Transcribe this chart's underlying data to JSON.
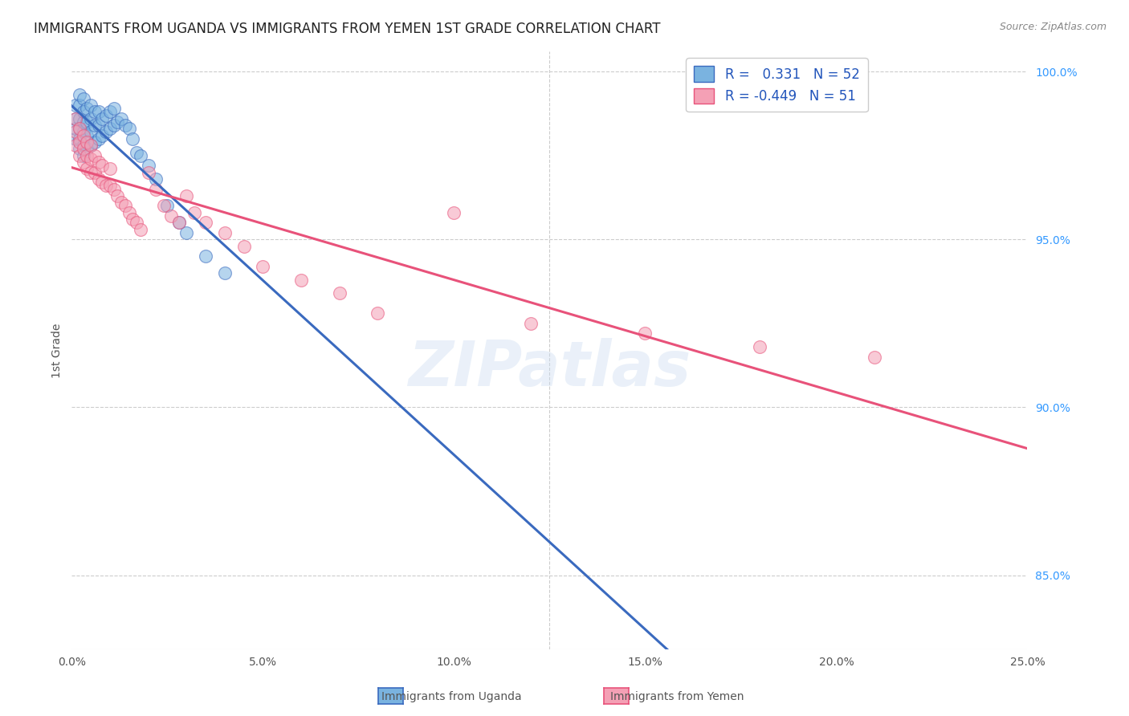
{
  "title": "IMMIGRANTS FROM UGANDA VS IMMIGRANTS FROM YEMEN 1ST GRADE CORRELATION CHART",
  "source": "Source: ZipAtlas.com",
  "ylabel": "1st Grade",
  "r_uganda": 0.331,
  "n_uganda": 52,
  "r_yemen": -0.449,
  "n_yemen": 51,
  "title_color": "#222222",
  "source_color": "#888888",
  "blue_scatter_color": "#7ab3e0",
  "pink_scatter_color": "#f4a0b5",
  "trendline_blue": "#3a6abf",
  "trendline_pink": "#e8527a",
  "legend_label_blue": "Immigrants from Uganda",
  "legend_label_pink": "Immigrants from Yemen",
  "watermark_text": "ZIPatlas",
  "xlim": [
    0.0,
    0.25
  ],
  "ylim": [
    0.828,
    1.006
  ],
  "xticks": [
    0.0,
    0.05,
    0.1,
    0.15,
    0.2,
    0.25
  ],
  "xticklabels": [
    "0.0%",
    "5.0%",
    "10.0%",
    "15.0%",
    "20.0%",
    "25.0%"
  ],
  "yticks_right": [
    1.0,
    0.95,
    0.9,
    0.85
  ],
  "yticklabels_right": [
    "100.0%",
    "95.0%",
    "90.0%",
    "85.0%"
  ],
  "gridline_color": "#cccccc",
  "uganda_x": [
    0.001,
    0.001,
    0.001,
    0.001,
    0.002,
    0.002,
    0.002,
    0.002,
    0.002,
    0.002,
    0.003,
    0.003,
    0.003,
    0.003,
    0.003,
    0.003,
    0.004,
    0.004,
    0.004,
    0.004,
    0.005,
    0.005,
    0.005,
    0.005,
    0.006,
    0.006,
    0.006,
    0.007,
    0.007,
    0.007,
    0.008,
    0.008,
    0.009,
    0.009,
    0.01,
    0.01,
    0.011,
    0.011,
    0.012,
    0.013,
    0.014,
    0.015,
    0.016,
    0.017,
    0.018,
    0.02,
    0.022,
    0.025,
    0.028,
    0.03,
    0.035,
    0.04
  ],
  "uganda_y": [
    0.98,
    0.983,
    0.986,
    0.99,
    0.977,
    0.98,
    0.983,
    0.986,
    0.99,
    0.993,
    0.975,
    0.978,
    0.982,
    0.985,
    0.988,
    0.992,
    0.977,
    0.981,
    0.985,
    0.989,
    0.978,
    0.982,
    0.986,
    0.99,
    0.979,
    0.984,
    0.988,
    0.98,
    0.984,
    0.988,
    0.981,
    0.986,
    0.982,
    0.987,
    0.983,
    0.988,
    0.984,
    0.989,
    0.985,
    0.986,
    0.984,
    0.983,
    0.98,
    0.976,
    0.975,
    0.972,
    0.968,
    0.96,
    0.955,
    0.952,
    0.945,
    0.94
  ],
  "yemen_x": [
    0.001,
    0.001,
    0.001,
    0.002,
    0.002,
    0.002,
    0.003,
    0.003,
    0.003,
    0.004,
    0.004,
    0.004,
    0.005,
    0.005,
    0.005,
    0.006,
    0.006,
    0.007,
    0.007,
    0.008,
    0.008,
    0.009,
    0.01,
    0.01,
    0.011,
    0.012,
    0.013,
    0.014,
    0.015,
    0.016,
    0.017,
    0.018,
    0.02,
    0.022,
    0.024,
    0.026,
    0.028,
    0.03,
    0.032,
    0.035,
    0.04,
    0.045,
    0.05,
    0.06,
    0.07,
    0.08,
    0.1,
    0.12,
    0.15,
    0.18,
    0.21
  ],
  "yemen_y": [
    0.978,
    0.982,
    0.986,
    0.975,
    0.979,
    0.983,
    0.973,
    0.977,
    0.981,
    0.971,
    0.975,
    0.979,
    0.97,
    0.974,
    0.978,
    0.97,
    0.975,
    0.968,
    0.973,
    0.967,
    0.972,
    0.966,
    0.966,
    0.971,
    0.965,
    0.963,
    0.961,
    0.96,
    0.958,
    0.956,
    0.955,
    0.953,
    0.97,
    0.965,
    0.96,
    0.957,
    0.955,
    0.963,
    0.958,
    0.955,
    0.952,
    0.948,
    0.942,
    0.938,
    0.934,
    0.928,
    0.958,
    0.925,
    0.922,
    0.918,
    0.915
  ]
}
